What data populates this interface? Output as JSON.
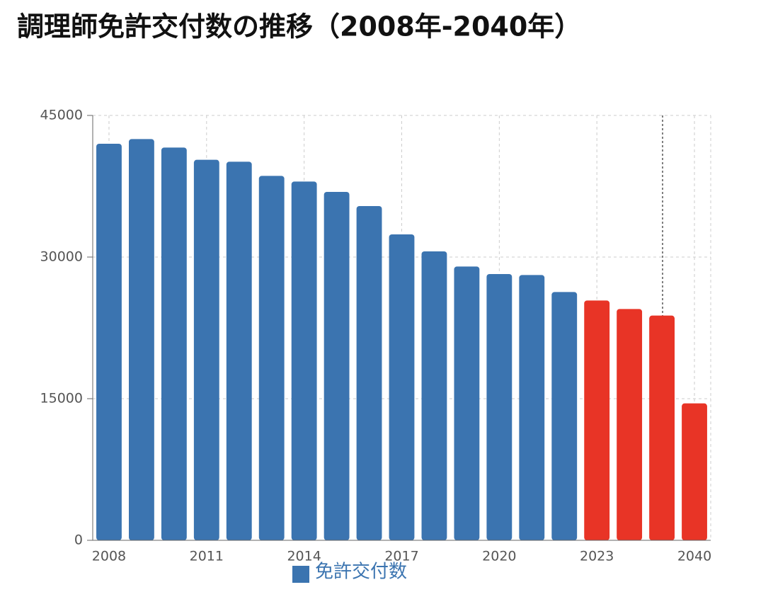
{
  "chart_data": {
    "type": "bar",
    "title": "調理師免許交付数の推移（2008年-2040年）",
    "categories": [
      "2008",
      null,
      null,
      "2011",
      null,
      null,
      "2014",
      null,
      null,
      "2017",
      null,
      null,
      "2020",
      null,
      null,
      "2023",
      null,
      null,
      "2040"
    ],
    "series": [
      {
        "name": "免許交付数",
        "color": "#3b74b0",
        "values": [
          42000,
          42500,
          41600,
          40300,
          40100,
          38600,
          38000,
          36900,
          35400,
          32400,
          30600,
          29000,
          28200,
          28100,
          26300,
          25400,
          24500,
          23800,
          14500
        ],
        "colors": [
          "#3b74b0",
          "#3b74b0",
          "#3b74b0",
          "#3b74b0",
          "#3b74b0",
          "#3b74b0",
          "#3b74b0",
          "#3b74b0",
          "#3b74b0",
          "#3b74b0",
          "#3b74b0",
          "#3b74b0",
          "#3b74b0",
          "#3b74b0",
          "#3b74b0",
          "#e83426",
          "#e83426",
          "#e83426",
          "#e83426"
        ]
      }
    ],
    "ylim": [
      0,
      45000
    ],
    "yticks": [
      0,
      15000,
      30000,
      45000
    ],
    "grid": true
  }
}
